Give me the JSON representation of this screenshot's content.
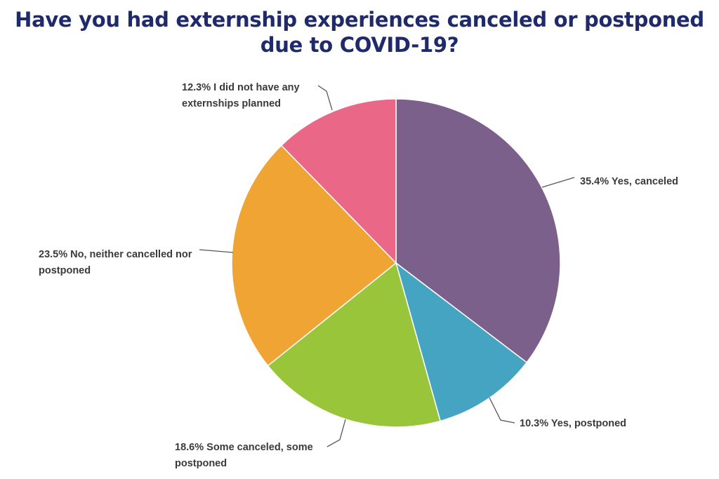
{
  "chart_data": {
    "type": "pie",
    "title": "Have you had externship experiences canceled or postponed due to COVID-19?",
    "title_lines": [
      "Have you had externship experiences canceled or postponed",
      "due to COVID-19?"
    ],
    "slices": [
      {
        "name": "Yes, canceled",
        "value": 35.4,
        "label_lines": [
          "35.4% Yes, canceled"
        ],
        "color": "#7b608c"
      },
      {
        "name": "Yes, postponed",
        "value": 10.3,
        "label_lines": [
          "10.3% Yes, postponed"
        ],
        "color": "#46a4c3"
      },
      {
        "name": "Some canceled, some postponed",
        "value": 18.6,
        "label_lines": [
          "18.6% Some canceled, some",
          "postponed"
        ],
        "color": "#99c53a"
      },
      {
        "name": "No, neither cancelled nor postponed",
        "value": 23.5,
        "label_lines": [
          "23.5% No, neither cancelled nor",
          "postponed"
        ],
        "color": "#f0a433"
      },
      {
        "name": "I did not have any externships planned",
        "value": 12.3,
        "label_lines": [
          "12.3% I did not have any",
          "externships planned"
        ],
        "color": "#ea6788"
      }
    ],
    "start_angle": "12 o'clock",
    "direction": "clockwise",
    "legend": "none (labels outside slices with leader lines)"
  }
}
